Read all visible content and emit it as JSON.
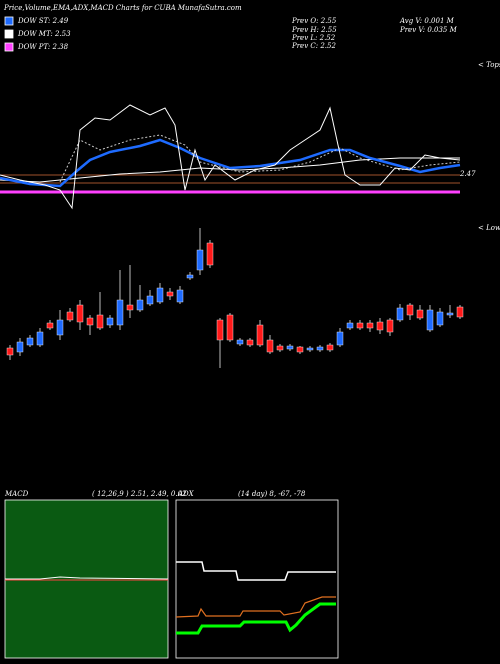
{
  "header": {
    "title": "Price,Volume,EMA,ADX,MACD Charts for CUBA MunafaSutra.com"
  },
  "legend": [
    {
      "label": "DOW ST: 2.49",
      "color": "#1e6bff"
    },
    {
      "label": "DOW MT: 2.53",
      "color": "#ffffff"
    },
    {
      "label": "DOW PT: 2.38",
      "color": "#ff40ff"
    }
  ],
  "info": [
    "Prev  O: 2.55",
    "Prev  H: 2.55",
    "Prev  L: 2.52",
    "Prev  C: 2.52",
    "Avg V: 0.001 M",
    "Prev  V: 0.035 M"
  ],
  "price_label": "2.47",
  "tops_label": "< Tops",
  "lows_label": "< Lows",
  "chart_data": {
    "type": "candlestick",
    "up_color": "#1e6bff",
    "down_color": "#ff1a1a",
    "candles": [
      [
        2.388,
        2.4,
        2.34,
        2.36
      ],
      [
        2.372,
        2.428,
        2.356,
        2.412
      ],
      [
        2.4,
        2.44,
        2.392,
        2.428
      ],
      [
        2.4,
        2.468,
        2.392,
        2.452
      ],
      [
        2.488,
        2.5,
        2.46,
        2.468
      ],
      [
        2.44,
        2.54,
        2.42,
        2.5
      ],
      [
        2.532,
        2.548,
        2.492,
        2.5
      ],
      [
        2.56,
        2.58,
        2.46,
        2.492
      ],
      [
        2.508,
        2.52,
        2.44,
        2.48
      ],
      [
        2.52,
        2.612,
        2.46,
        2.468
      ],
      [
        2.48,
        2.52,
        2.468,
        2.508
      ],
      [
        2.48,
        2.7,
        2.46,
        2.58
      ],
      [
        2.56,
        2.72,
        2.508,
        2.54
      ],
      [
        2.54,
        2.64,
        2.532,
        2.58
      ],
      [
        2.564,
        2.62,
        2.556,
        2.596
      ],
      [
        2.572,
        2.648,
        2.564,
        2.628
      ],
      [
        2.612,
        2.628,
        2.58,
        2.596
      ],
      [
        2.572,
        2.636,
        2.564,
        2.62
      ],
      [
        2.668,
        2.692,
        2.66,
        2.68
      ],
      [
        2.7,
        2.868,
        2.68,
        2.78
      ],
      [
        2.808,
        2.82,
        2.708,
        2.72
      ],
      [
        2.5,
        2.508,
        2.308,
        2.42
      ],
      [
        2.52,
        2.528,
        2.412,
        2.42
      ],
      [
        2.404,
        2.428,
        2.396,
        2.42
      ],
      [
        2.42,
        2.428,
        2.392,
        2.4
      ],
      [
        2.48,
        2.5,
        2.392,
        2.4
      ],
      [
        2.42,
        2.44,
        2.364,
        2.372
      ],
      [
        2.396,
        2.404,
        2.372,
        2.38
      ],
      [
        2.384,
        2.404,
        2.376,
        2.396
      ],
      [
        2.392,
        2.396,
        2.364,
        2.372
      ],
      [
        2.38,
        2.396,
        2.372,
        2.388
      ],
      [
        2.38,
        2.4,
        2.372,
        2.392
      ],
      [
        2.4,
        2.408,
        2.372,
        2.38
      ],
      [
        2.4,
        2.468,
        2.392,
        2.452
      ],
      [
        2.468,
        2.5,
        2.46,
        2.488
      ],
      [
        2.488,
        2.5,
        2.46,
        2.468
      ],
      [
        2.488,
        2.5,
        2.452,
        2.468
      ],
      [
        2.492,
        2.508,
        2.444,
        2.46
      ],
      [
        2.5,
        2.508,
        2.436,
        2.452
      ],
      [
        2.5,
        2.564,
        2.492,
        2.548
      ],
      [
        2.56,
        2.568,
        2.5,
        2.52
      ],
      [
        2.54,
        2.56,
        2.5,
        2.508
      ],
      [
        2.46,
        2.56,
        2.452,
        2.54
      ],
      [
        2.48,
        2.548,
        2.472,
        2.532
      ],
      [
        2.52,
        2.56,
        2.508,
        2.528
      ],
      [
        2.552,
        2.56,
        2.504,
        2.512
      ]
    ]
  },
  "macd": {
    "title": "MACD",
    "params": "( 12,26,9 ) 2.51, 2.49, 0.02"
  },
  "adx": {
    "title": "ADX",
    "params": "(14  day) 8, -67, -78"
  }
}
